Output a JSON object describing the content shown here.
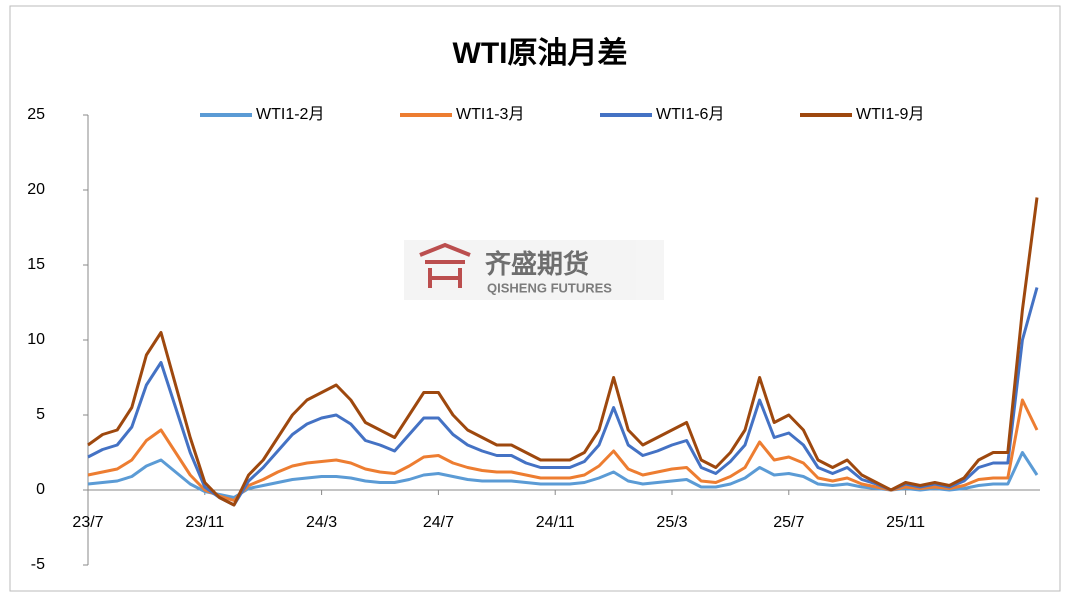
{
  "chart_data": {
    "type": "line",
    "title": "WTI原油月差",
    "watermark": {
      "name": "齐盛期货",
      "subtitle": "QISHENG FUTURES"
    },
    "categories": [
      "23/7",
      null,
      null,
      null,
      null,
      null,
      null,
      null,
      "23/11",
      null,
      null,
      null,
      null,
      null,
      null,
      null,
      "24/3",
      null,
      null,
      null,
      null,
      null,
      null,
      null,
      "24/7",
      null,
      null,
      null,
      null,
      null,
      null,
      null,
      "24/11",
      null,
      null,
      null,
      null,
      null,
      null,
      null,
      "25/3",
      null,
      null,
      null,
      null,
      null,
      null,
      null,
      "25/7",
      null,
      null,
      null,
      null,
      null,
      null,
      null,
      "25/11",
      null,
      null,
      null,
      null,
      null,
      null,
      null,
      null,
      null
    ],
    "series": [
      {
        "name": "WTI1-2月",
        "color": "#5B9BD5",
        "values": [
          0.4,
          0.5,
          0.6,
          0.9,
          1.6,
          2.0,
          1.2,
          0.4,
          -0.1,
          -0.3,
          -0.5,
          0.1,
          0.3,
          0.5,
          0.7,
          0.8,
          0.9,
          0.9,
          0.8,
          0.6,
          0.5,
          0.5,
          0.7,
          1.0,
          1.1,
          0.9,
          0.7,
          0.6,
          0.6,
          0.6,
          0.5,
          0.4,
          0.4,
          0.4,
          0.5,
          0.8,
          1.2,
          0.6,
          0.4,
          0.5,
          0.6,
          0.7,
          0.2,
          0.2,
          0.4,
          0.8,
          1.5,
          1.0,
          1.1,
          0.9,
          0.4,
          0.3,
          0.4,
          0.2,
          0.1,
          0.0,
          0.1,
          0.0,
          0.1,
          0.0,
          0.1,
          0.3,
          0.4,
          0.4,
          2.5,
          1.0
        ]
      },
      {
        "name": "WTI1-3月",
        "color": "#ED7D31",
        "values": [
          1.0,
          1.2,
          1.4,
          2.0,
          3.3,
          4.0,
          2.5,
          1.0,
          0.0,
          -0.4,
          -0.7,
          0.3,
          0.7,
          1.2,
          1.6,
          1.8,
          1.9,
          2.0,
          1.8,
          1.4,
          1.2,
          1.1,
          1.6,
          2.2,
          2.3,
          1.8,
          1.5,
          1.3,
          1.2,
          1.2,
          1.0,
          0.8,
          0.8,
          0.8,
          1.0,
          1.6,
          2.6,
          1.4,
          1.0,
          1.2,
          1.4,
          1.5,
          0.6,
          0.5,
          0.9,
          1.5,
          3.2,
          2.0,
          2.2,
          1.8,
          0.8,
          0.6,
          0.8,
          0.4,
          0.2,
          0.0,
          0.2,
          0.1,
          0.2,
          0.1,
          0.3,
          0.7,
          0.8,
          0.8,
          6.0,
          4.0
        ]
      },
      {
        "name": "WTI1-6月",
        "color": "#4472C4",
        "values": [
          2.2,
          2.7,
          3.0,
          4.2,
          7.0,
          8.5,
          5.5,
          2.5,
          0.2,
          -0.5,
          -1.0,
          0.6,
          1.5,
          2.6,
          3.7,
          4.4,
          4.8,
          5.0,
          4.4,
          3.3,
          3.0,
          2.6,
          3.7,
          4.8,
          4.8,
          3.7,
          3.0,
          2.6,
          2.3,
          2.3,
          1.8,
          1.5,
          1.5,
          1.5,
          1.9,
          3.0,
          5.5,
          3.0,
          2.3,
          2.6,
          3.0,
          3.3,
          1.5,
          1.1,
          1.9,
          3.0,
          6.0,
          3.5,
          3.8,
          3.0,
          1.5,
          1.1,
          1.5,
          0.7,
          0.4,
          0.0,
          0.4,
          0.2,
          0.4,
          0.2,
          0.6,
          1.5,
          1.8,
          1.8,
          10.0,
          13.5
        ]
      },
      {
        "name": "WTI1-9月",
        "color": "#9E480E",
        "values": [
          3.0,
          3.7,
          4.0,
          5.5,
          9.0,
          10.5,
          7.0,
          3.5,
          0.5,
          -0.5,
          -1.0,
          1.0,
          2.0,
          3.5,
          5.0,
          6.0,
          6.5,
          7.0,
          6.0,
          4.5,
          4.0,
          3.5,
          5.0,
          6.5,
          6.5,
          5.0,
          4.0,
          3.5,
          3.0,
          3.0,
          2.5,
          2.0,
          2.0,
          2.0,
          2.5,
          4.0,
          7.5,
          4.0,
          3.0,
          3.5,
          4.0,
          4.5,
          2.0,
          1.5,
          2.5,
          4.0,
          7.5,
          4.5,
          5.0,
          4.0,
          2.0,
          1.5,
          2.0,
          1.0,
          0.5,
          0.0,
          0.5,
          0.3,
          0.5,
          0.3,
          0.8,
          2.0,
          2.5,
          2.5,
          12.0,
          19.5
        ]
      }
    ],
    "ylim": [
      -5,
      25
    ],
    "yticks": [
      -5,
      0,
      5,
      10,
      15,
      20,
      25
    ],
    "legend": "top"
  }
}
